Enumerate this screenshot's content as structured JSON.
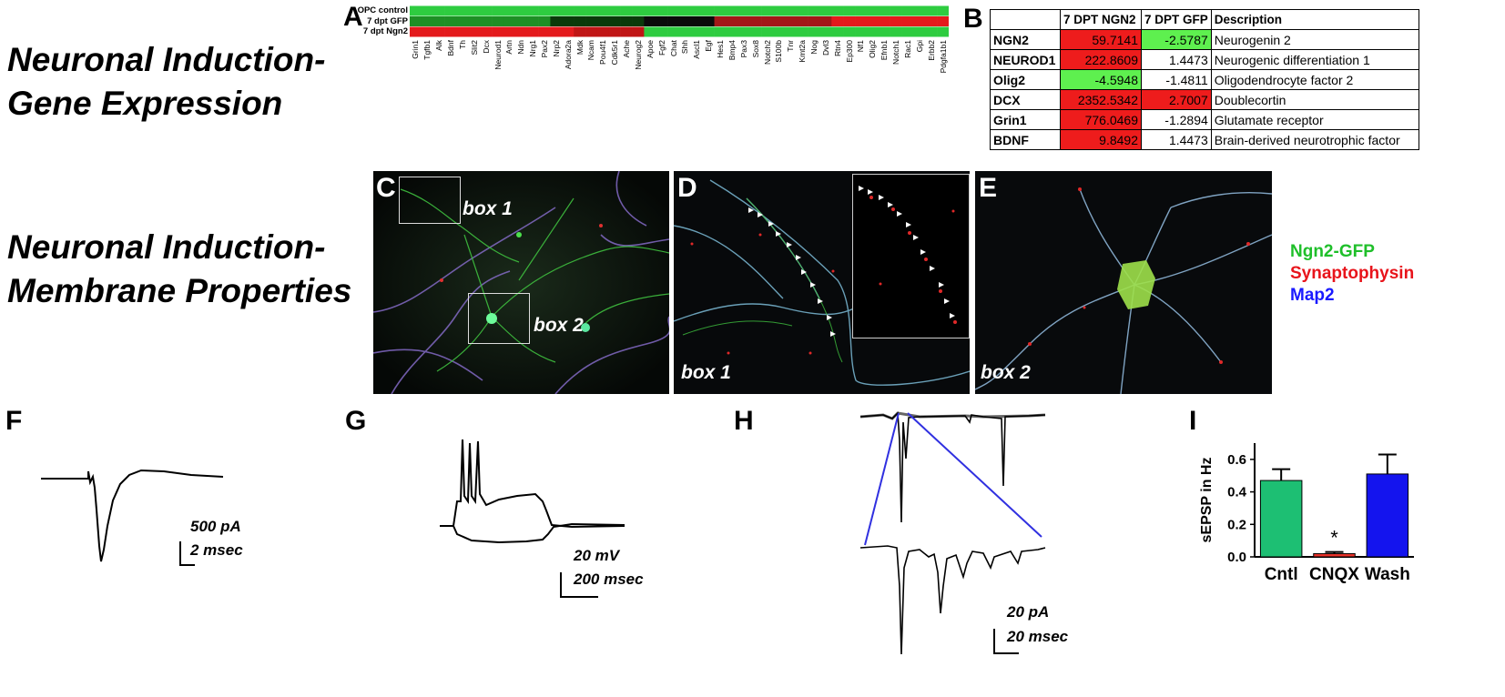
{
  "section_titles": {
    "gene_expression": [
      "Neuronal Induction-",
      "Gene Expression"
    ],
    "membrane_properties": [
      "Neuronal Induction-",
      "Membrane Properties"
    ]
  },
  "panel_letters": {
    "A": "A",
    "B": "B",
    "C": "C",
    "D": "D",
    "E": "E",
    "F": "F",
    "G": "G",
    "H": "H",
    "I": "I"
  },
  "heatmap": {
    "row_labels": [
      "OPC control",
      "7 dpt GFP",
      "7 dpt Ngn2"
    ],
    "genes": [
      "Grin1",
      "Tgfb1",
      "Alk",
      "Bdnf",
      "Th",
      "Slit2",
      "Dcx",
      "Neurod1",
      "Artn",
      "Ndn",
      "Nrg1",
      "Pax2",
      "Nrp2",
      "Adora2a",
      "Mdk",
      "Ncam",
      "Pou4f1",
      "Cdk5r1",
      "Ache",
      "Neurog2",
      "Apoe",
      "Fgf2",
      "Chat",
      "Shh",
      "Ascl1",
      "Egf",
      "Hes1",
      "Bmp4",
      "Pax3",
      "Sox8",
      "Notch2",
      "S100b",
      "Tnr",
      "Kmt2a",
      "Nog",
      "Dvl3",
      "Rtn4",
      "Ep300",
      "Nf1",
      "Olig2",
      "Efnb1",
      "Notch1",
      "Rac1",
      "Gpi",
      "Erbb2",
      "Pdgfa1b1"
    ],
    "colors": {
      "up": "#e41a1c",
      "down": "#2ecc40",
      "neutral": "#000000"
    }
  },
  "table": {
    "headers": [
      "",
      "7 DPT NGN2",
      "7 DPT GFP",
      "Description"
    ],
    "rows": [
      {
        "gene": "NGN2",
        "ngn2": "59.7141",
        "gfp": "-2.5787",
        "desc": "Neurogenin 2"
      },
      {
        "gene": "NEUROD1",
        "ngn2": "222.8609",
        "gfp": "1.4473",
        "desc": "Neurogenic differentiation 1"
      },
      {
        "gene": "Olig2",
        "ngn2": "-4.5948",
        "gfp": "-1.4811",
        "desc": "Oligodendrocyte factor 2"
      },
      {
        "gene": "DCX",
        "ngn2": "2352.5342",
        "gfp": "2.7007",
        "desc": "Doublecortin"
      },
      {
        "gene": "Grin1",
        "ngn2": "776.0469",
        "gfp": "-1.2894",
        "desc": "Glutamate receptor"
      },
      {
        "gene": "BDNF",
        "ngn2": "9.8492",
        "gfp": "1.4473",
        "desc": "Brain-derived neurotrophic factor"
      }
    ]
  },
  "micrographs": {
    "box1_label": "box 1",
    "box2_label": "box 2"
  },
  "legend": {
    "items": [
      {
        "label": "Ngn2-GFP",
        "color": "#1fbf2a"
      },
      {
        "label": "Synaptophysin",
        "color": "#e8141b"
      },
      {
        "label": "Map2",
        "color": "#1a1aff"
      }
    ]
  },
  "scale_bars": {
    "F": [
      "500 pA",
      "2 msec"
    ],
    "G": [
      "20 mV",
      "200 msec"
    ],
    "H": [
      "20 pA",
      "20 msec"
    ]
  },
  "chart_data": {
    "type": "bar",
    "categories": [
      "Cntl",
      "CNQX",
      "Wash"
    ],
    "values": [
      0.47,
      0.02,
      0.51
    ],
    "errors": [
      0.07,
      0.01,
      0.12
    ],
    "colors": [
      "#1dbf73",
      "#e8322a",
      "#1414ee"
    ],
    "ylabel": "sEPSP in Hz",
    "ylim": [
      0,
      0.7
    ],
    "yticks": [
      "0.0",
      "0.2",
      "0.4",
      "0.6"
    ],
    "ytick_values": [
      0,
      0.2,
      0.4,
      0.6
    ],
    "annotation": "*"
  }
}
